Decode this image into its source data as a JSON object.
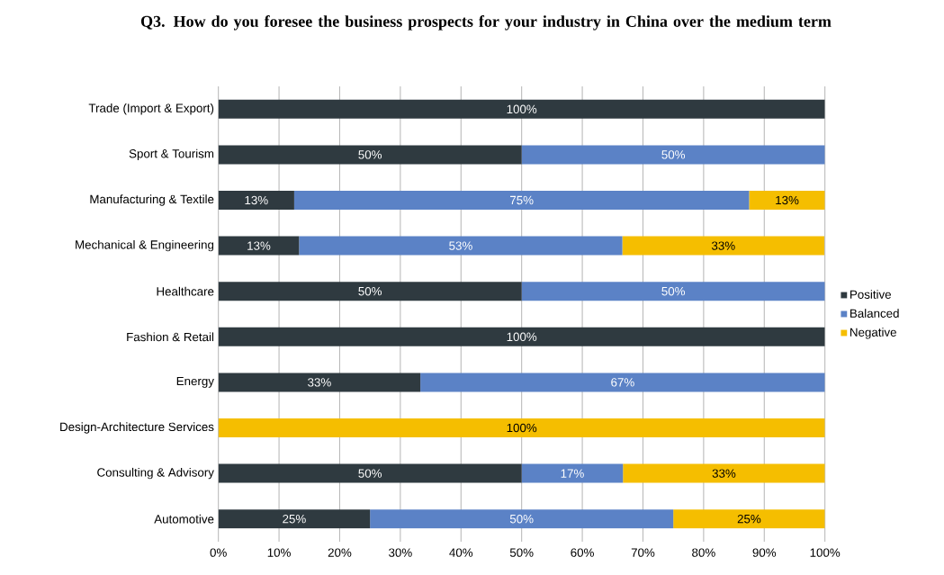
{
  "chart_data": {
    "type": "bar",
    "orientation": "horizontal",
    "stacked": true,
    "title": "Q3. How do you foresee the business prospects for your industry in China over the medium term",
    "categories": [
      "Trade (Import & Export)",
      "Sport & Tourism",
      "Manufacturing & Textile",
      "Mechanical & Engineering",
      "Healthcare",
      "Fashion & Retail",
      "Energy",
      "Design-Architecture Services",
      "Consulting & Advisory",
      "Automotive"
    ],
    "series": [
      {
        "name": "Positive",
        "color": "#2f3a40",
        "values": [
          100,
          50,
          12.5,
          13.3,
          50,
          100,
          33.3,
          0,
          50,
          25
        ],
        "value_labels": [
          "100%",
          "50%",
          "13%",
          "13%",
          "50%",
          "100%",
          "33%",
          null,
          "50%",
          "25%"
        ]
      },
      {
        "name": "Balanced",
        "color": "#5b82c6",
        "values": [
          0,
          50,
          75,
          53.3,
          50,
          0,
          66.7,
          0,
          16.7,
          50
        ],
        "value_labels": [
          null,
          "50%",
          "75%",
          "53%",
          "50%",
          null,
          "67%",
          null,
          "17%",
          "50%"
        ]
      },
      {
        "name": "Negative",
        "color": "#f5be00",
        "values": [
          0,
          0,
          12.5,
          33.3,
          0,
          0,
          0,
          100,
          33.3,
          25
        ],
        "value_labels": [
          null,
          null,
          "13%",
          "33%",
          null,
          null,
          null,
          "100%",
          "33%",
          "25%"
        ]
      }
    ],
    "xlim": [
      0,
      100
    ],
    "xticks": [
      {
        "value": 0,
        "label": "0%"
      },
      {
        "value": 10,
        "label": "10%"
      },
      {
        "value": 20,
        "label": "20%"
      },
      {
        "value": 30,
        "label": "30%"
      },
      {
        "value": 40,
        "label": "40%"
      },
      {
        "value": 50,
        "label": "50%"
      },
      {
        "value": 60,
        "label": "60%"
      },
      {
        "value": 70,
        "label": "70%"
      },
      {
        "value": 80,
        "label": "80%"
      },
      {
        "value": 90,
        "label": "90%"
      },
      {
        "value": 100,
        "label": "100%"
      }
    ],
    "grid": "x",
    "legend": "right"
  }
}
